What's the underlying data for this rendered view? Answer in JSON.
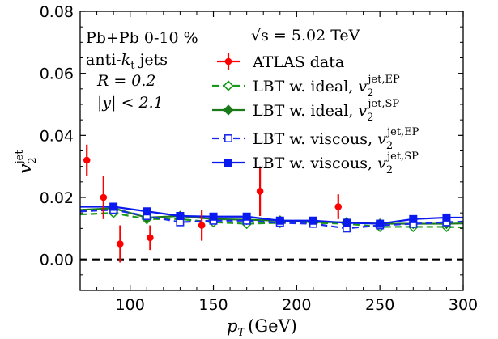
{
  "chart_data": {
    "type": "line",
    "xlabel_main": "p",
    "xlabel_sub": "T",
    "xlabel_unit": "(GeV)",
    "ylabel_main": "v",
    "ylabel_sub": "2",
    "ylabel_sup": "jet",
    "xlim": [
      70,
      300
    ],
    "ylim": [
      -0.01,
      0.08
    ],
    "xticks": [
      100,
      150,
      200,
      250,
      300
    ],
    "yticks": [
      0.0,
      0.02,
      0.04,
      0.06,
      0.08
    ],
    "ytick_labels": [
      "0.00",
      "0.02",
      "0.04",
      "0.06",
      "0.08"
    ],
    "reference_line": 0.0,
    "annotations": {
      "system": "Pb+Pb 0-10 %",
      "jets_prefix": "anti-",
      "jets_k": "k",
      "jets_sub": "t",
      "jets_suffix": " jets",
      "radius": "R = 0.2",
      "rapidity": "|y| < 2.1",
      "energy": "√s = 5.02 TeV"
    },
    "legend_placement": "upper-right",
    "series": [
      {
        "name": "ATLAS data",
        "style": "errorbar",
        "color": "#ff0000",
        "x": [
          74,
          84,
          94,
          112,
          143,
          178,
          225
        ],
        "y": [
          0.032,
          0.02,
          0.005,
          0.007,
          0.011,
          0.022,
          0.017
        ],
        "yerr": [
          0.005,
          0.007,
          0.006,
          0.004,
          0.005,
          0.008,
          0.004
        ]
      },
      {
        "name": "LBT w. ideal, v",
        "name_sub": "2",
        "name_sup": "jet,EP",
        "style": "dashed-open-diamond",
        "color": "#1a9a1a",
        "x": [
          70,
          90,
          110,
          130,
          150,
          170,
          190,
          210,
          230,
          250,
          270,
          290,
          300
        ],
        "y": [
          0.0145,
          0.015,
          0.013,
          0.013,
          0.012,
          0.0115,
          0.0118,
          0.0118,
          0.0115,
          0.0105,
          0.0105,
          0.0105,
          0.0103
        ]
      },
      {
        "name": "LBT w. ideal, v",
        "name_sub": "2",
        "name_sup": "jet,SP",
        "style": "solid-filled-diamond",
        "color": "#1a7a1a",
        "x": [
          70,
          90,
          110,
          130,
          150,
          170,
          190,
          210,
          230,
          250,
          270,
          290,
          300
        ],
        "y": [
          0.016,
          0.0165,
          0.0135,
          0.014,
          0.013,
          0.0128,
          0.0125,
          0.012,
          0.012,
          0.0115,
          0.0115,
          0.0115,
          0.0116
        ]
      },
      {
        "name": "LBT w. viscous, v",
        "name_sub": "2",
        "name_sup": "jet,EP",
        "style": "dashed-open-square",
        "color": "#1a2aee",
        "x": [
          70,
          90,
          110,
          130,
          150,
          170,
          190,
          210,
          230,
          250,
          270,
          290,
          300
        ],
        "y": [
          0.0155,
          0.016,
          0.014,
          0.012,
          0.0125,
          0.0125,
          0.0118,
          0.0115,
          0.01,
          0.011,
          0.0115,
          0.012,
          0.0122
        ]
      },
      {
        "name": "LBT w. viscous, v",
        "name_sub": "2",
        "name_sup": "jet,SP",
        "style": "solid-filled-square",
        "color": "#0a1aee",
        "x": [
          70,
          90,
          110,
          130,
          150,
          170,
          190,
          210,
          230,
          250,
          270,
          290,
          300
        ],
        "y": [
          0.017,
          0.017,
          0.0155,
          0.014,
          0.0138,
          0.0138,
          0.0125,
          0.0125,
          0.0118,
          0.0115,
          0.013,
          0.0135,
          0.0135
        ]
      }
    ]
  }
}
